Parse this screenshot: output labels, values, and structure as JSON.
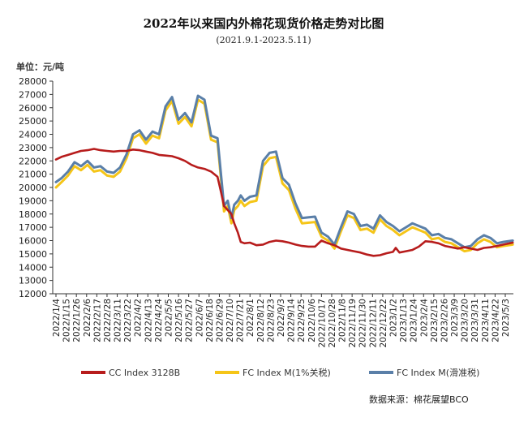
{
  "chart_data": {
    "type": "line",
    "title": "2022年以来国内外棉花现货价格走势对比图",
    "subtitle": "(2021.9.1-2023.5.11)",
    "ylabel": "单位：元/吨",
    "source": "数据来源：棉花展望BCO",
    "ylim": [
      12000,
      28000
    ],
    "yticks": [
      12000,
      13000,
      14000,
      15000,
      16000,
      17000,
      18000,
      19000,
      20000,
      21000,
      22000,
      23000,
      24000,
      25000,
      26000,
      27000,
      28000
    ],
    "xticks": [
      "2022/1/4",
      "2022/1/15",
      "2022/1/26",
      "2022/2/6",
      "2022/2/17",
      "2022/2/28",
      "2022/3/11",
      "2022/3/22",
      "2022/4/2",
      "2022/4/13",
      "2022/4/24",
      "2022/5/5",
      "2022/5/16",
      "2022/5/27",
      "2022/6/7",
      "2022/6/18",
      "2022/6/29",
      "2022/7/10",
      "2022/7/21",
      "2022/8/1",
      "2022/8/12",
      "2022/8/23",
      "2022/9/3",
      "2022/9/14",
      "2022/9/25",
      "2022/10/6",
      "2022/10/17",
      "2022/10/28",
      "2022/11/8",
      "2022/11/19",
      "2022/11/30",
      "2022/12/11",
      "2022/12/22",
      "2023/1/2",
      "2023/1/13",
      "2023/1/24",
      "2023/2/4",
      "2023/2/15",
      "2023/2/26",
      "2023/3/9",
      "2023/3/20",
      "2023/3/31",
      "2023/4/11",
      "2023/4/22",
      "2023/5/3"
    ],
    "legend_position": "bottom",
    "grid": false,
    "series": [
      {
        "name": "CC Index 3128B",
        "color": "#b71c1c",
        "points": [
          [
            "2022/1/4",
            22100
          ],
          [
            "2022/1/10",
            22300
          ],
          [
            "2022/1/17",
            22450
          ],
          [
            "2022/1/24",
            22600
          ],
          [
            "2022/1/31",
            22750
          ],
          [
            "2022/2/7",
            22800
          ],
          [
            "2022/2/14",
            22900
          ],
          [
            "2022/2/21",
            22800
          ],
          [
            "2022/2/28",
            22750
          ],
          [
            "2022/3/7",
            22700
          ],
          [
            "2022/3/14",
            22750
          ],
          [
            "2022/3/21",
            22750
          ],
          [
            "2022/3/28",
            22850
          ],
          [
            "2022/4/4",
            22800
          ],
          [
            "2022/4/11",
            22700
          ],
          [
            "2022/4/18",
            22600
          ],
          [
            "2022/4/25",
            22450
          ],
          [
            "2022/5/2",
            22400
          ],
          [
            "2022/5/9",
            22350
          ],
          [
            "2022/5/16",
            22200
          ],
          [
            "2022/5/23",
            22000
          ],
          [
            "2022/5/30",
            21700
          ],
          [
            "2022/6/6",
            21500
          ],
          [
            "2022/6/13",
            21400
          ],
          [
            "2022/6/20",
            21200
          ],
          [
            "2022/6/27",
            20800
          ],
          [
            "2022/7/1",
            19600
          ],
          [
            "2022/7/4",
            18600
          ],
          [
            "2022/7/8",
            18300
          ],
          [
            "2022/7/12",
            18000
          ],
          [
            "2022/7/15",
            17300
          ],
          [
            "2022/7/19",
            16600
          ],
          [
            "2022/7/22",
            15900
          ],
          [
            "2022/7/26",
            15800
          ],
          [
            "2022/8/1",
            15850
          ],
          [
            "2022/8/8",
            15650
          ],
          [
            "2022/8/15",
            15700
          ],
          [
            "2022/8/22",
            15900
          ],
          [
            "2022/8/29",
            16000
          ],
          [
            "2022/9/5",
            15950
          ],
          [
            "2022/9/12",
            15850
          ],
          [
            "2022/9/19",
            15700
          ],
          [
            "2022/9/26",
            15600
          ],
          [
            "2022/10/3",
            15550
          ],
          [
            "2022/10/10",
            15550
          ],
          [
            "2022/10/17",
            16000
          ],
          [
            "2022/10/24",
            15800
          ],
          [
            "2022/10/31",
            15650
          ],
          [
            "2022/11/7",
            15400
          ],
          [
            "2022/11/14",
            15300
          ],
          [
            "2022/11/21",
            15200
          ],
          [
            "2022/11/28",
            15100
          ],
          [
            "2022/12/5",
            14950
          ],
          [
            "2022/12/12",
            14850
          ],
          [
            "2022/12/19",
            14900
          ],
          [
            "2022/12/26",
            15050
          ],
          [
            "2023/1/2",
            15150
          ],
          [
            "2023/1/5",
            15450
          ],
          [
            "2023/1/9",
            15100
          ],
          [
            "2023/1/16",
            15200
          ],
          [
            "2023/1/23",
            15300
          ],
          [
            "2023/1/30",
            15550
          ],
          [
            "2023/2/6",
            15950
          ],
          [
            "2023/2/13",
            15900
          ],
          [
            "2023/2/20",
            15800
          ],
          [
            "2023/2/27",
            15600
          ],
          [
            "2023/3/6",
            15500
          ],
          [
            "2023/3/13",
            15400
          ],
          [
            "2023/3/20",
            15500
          ],
          [
            "2023/3/27",
            15400
          ],
          [
            "2023/4/3",
            15300
          ],
          [
            "2023/4/10",
            15450
          ],
          [
            "2023/4/17",
            15500
          ],
          [
            "2023/4/24",
            15600
          ],
          [
            "2023/5/1",
            15700
          ],
          [
            "2023/5/11",
            15850
          ]
        ]
      },
      {
        "name": "FC Index M(1%关税)",
        "color": "#f5c518",
        "points": [
          [
            "2022/1/4",
            20000
          ],
          [
            "2022/1/10",
            20400
          ],
          [
            "2022/1/17",
            20900
          ],
          [
            "2022/1/24",
            21600
          ],
          [
            "2022/1/31",
            21300
          ],
          [
            "2022/2/7",
            21700
          ],
          [
            "2022/2/14",
            21200
          ],
          [
            "2022/2/21",
            21300
          ],
          [
            "2022/2/28",
            20900
          ],
          [
            "2022/3/7",
            20800
          ],
          [
            "2022/3/14",
            21200
          ],
          [
            "2022/3/21",
            22200
          ],
          [
            "2022/3/28",
            23700
          ],
          [
            "2022/4/4",
            24000
          ],
          [
            "2022/4/11",
            23300
          ],
          [
            "2022/4/18",
            23900
          ],
          [
            "2022/4/25",
            23700
          ],
          [
            "2022/5/2",
            25800
          ],
          [
            "2022/5/9",
            26500
          ],
          [
            "2022/5/16",
            24800
          ],
          [
            "2022/5/23",
            25300
          ],
          [
            "2022/5/30",
            24600
          ],
          [
            "2022/6/6",
            26600
          ],
          [
            "2022/6/13",
            26300
          ],
          [
            "2022/6/20",
            23600
          ],
          [
            "2022/6/27",
            23400
          ],
          [
            "2022/7/4",
            18200
          ],
          [
            "2022/7/8",
            18600
          ],
          [
            "2022/7/12",
            17300
          ],
          [
            "2022/7/15",
            18300
          ],
          [
            "2022/7/19",
            18600
          ],
          [
            "2022/7/22",
            19000
          ],
          [
            "2022/7/26",
            18600
          ],
          [
            "2022/8/1",
            18900
          ],
          [
            "2022/8/8",
            19000
          ],
          [
            "2022/8/15",
            21600
          ],
          [
            "2022/8/22",
            22200
          ],
          [
            "2022/8/29",
            22300
          ],
          [
            "2022/9/5",
            20300
          ],
          [
            "2022/9/12",
            19800
          ],
          [
            "2022/9/19",
            18400
          ],
          [
            "2022/9/26",
            17300
          ],
          [
            "2022/10/10",
            17400
          ],
          [
            "2022/10/17",
            16300
          ],
          [
            "2022/10/24",
            16000
          ],
          [
            "2022/10/31",
            15400
          ],
          [
            "2022/11/7",
            16700
          ],
          [
            "2022/11/14",
            17900
          ],
          [
            "2022/11/21",
            17700
          ],
          [
            "2022/11/28",
            16800
          ],
          [
            "2022/12/5",
            16900
          ],
          [
            "2022/12/12",
            16600
          ],
          [
            "2022/12/19",
            17600
          ],
          [
            "2022/12/26",
            17100
          ],
          [
            "2023/1/2",
            16800
          ],
          [
            "2023/1/9",
            16400
          ],
          [
            "2023/1/16",
            16700
          ],
          [
            "2023/1/23",
            17000
          ],
          [
            "2023/1/30",
            16800
          ],
          [
            "2023/2/6",
            16600
          ],
          [
            "2023/2/13",
            16100
          ],
          [
            "2023/2/20",
            16200
          ],
          [
            "2023/2/27",
            15900
          ],
          [
            "2023/3/6",
            15800
          ],
          [
            "2023/3/13",
            15500
          ],
          [
            "2023/3/20",
            15200
          ],
          [
            "2023/3/27",
            15300
          ],
          [
            "2023/4/3",
            15800
          ],
          [
            "2023/4/10",
            16100
          ],
          [
            "2023/4/17",
            15900
          ],
          [
            "2023/4/24",
            15500
          ],
          [
            "2023/5/1",
            15600
          ],
          [
            "2023/5/11",
            15700
          ]
        ]
      },
      {
        "name": "FC Index M(滑准税)",
        "color": "#5a7fa8",
        "points": [
          [
            "2022/1/4",
            20400
          ],
          [
            "2022/1/10",
            20700
          ],
          [
            "2022/1/17",
            21200
          ],
          [
            "2022/1/24",
            21900
          ],
          [
            "2022/1/31",
            21600
          ],
          [
            "2022/2/7",
            22000
          ],
          [
            "2022/2/14",
            21500
          ],
          [
            "2022/2/21",
            21600
          ],
          [
            "2022/2/28",
            21200
          ],
          [
            "2022/3/7",
            21100
          ],
          [
            "2022/3/14",
            21500
          ],
          [
            "2022/3/21",
            22500
          ],
          [
            "2022/3/28",
            24000
          ],
          [
            "2022/4/4",
            24300
          ],
          [
            "2022/4/11",
            23600
          ],
          [
            "2022/4/18",
            24200
          ],
          [
            "2022/4/25",
            24000
          ],
          [
            "2022/5/2",
            26100
          ],
          [
            "2022/5/9",
            26800
          ],
          [
            "2022/5/16",
            25100
          ],
          [
            "2022/5/23",
            25600
          ],
          [
            "2022/5/30",
            24900
          ],
          [
            "2022/6/6",
            26900
          ],
          [
            "2022/6/13",
            26600
          ],
          [
            "2022/6/20",
            23900
          ],
          [
            "2022/6/27",
            23700
          ],
          [
            "2022/7/4",
            18600
          ],
          [
            "2022/7/8",
            19000
          ],
          [
            "2022/7/12",
            17700
          ],
          [
            "2022/7/15",
            18700
          ],
          [
            "2022/7/19",
            19000
          ],
          [
            "2022/7/22",
            19400
          ],
          [
            "2022/7/26",
            19000
          ],
          [
            "2022/8/1",
            19300
          ],
          [
            "2022/8/8",
            19400
          ],
          [
            "2022/8/15",
            22000
          ],
          [
            "2022/8/22",
            22600
          ],
          [
            "2022/8/29",
            22700
          ],
          [
            "2022/9/5",
            20700
          ],
          [
            "2022/9/12",
            20200
          ],
          [
            "2022/9/19",
            18800
          ],
          [
            "2022/9/26",
            17700
          ],
          [
            "2022/10/10",
            17800
          ],
          [
            "2022/10/17",
            16600
          ],
          [
            "2022/10/24",
            16300
          ],
          [
            "2022/10/31",
            15700
          ],
          [
            "2022/11/7",
            17000
          ],
          [
            "2022/11/14",
            18200
          ],
          [
            "2022/11/21",
            18000
          ],
          [
            "2022/11/28",
            17100
          ],
          [
            "2022/12/5",
            17200
          ],
          [
            "2022/12/12",
            16900
          ],
          [
            "2022/12/19",
            17900
          ],
          [
            "2022/12/26",
            17400
          ],
          [
            "2023/1/2",
            17100
          ],
          [
            "2023/1/9",
            16700
          ],
          [
            "2023/1/16",
            17000
          ],
          [
            "2023/1/23",
            17300
          ],
          [
            "2023/1/30",
            17100
          ],
          [
            "2023/2/6",
            16900
          ],
          [
            "2023/2/13",
            16400
          ],
          [
            "2023/2/20",
            16500
          ],
          [
            "2023/2/27",
            16200
          ],
          [
            "2023/3/6",
            16100
          ],
          [
            "2023/3/13",
            15800
          ],
          [
            "2023/3/20",
            15500
          ],
          [
            "2023/3/27",
            15600
          ],
          [
            "2023/4/3",
            16100
          ],
          [
            "2023/4/10",
            16400
          ],
          [
            "2023/4/17",
            16200
          ],
          [
            "2023/4/24",
            15800
          ],
          [
            "2023/5/1",
            15900
          ],
          [
            "2023/5/11",
            16000
          ]
        ]
      }
    ]
  }
}
